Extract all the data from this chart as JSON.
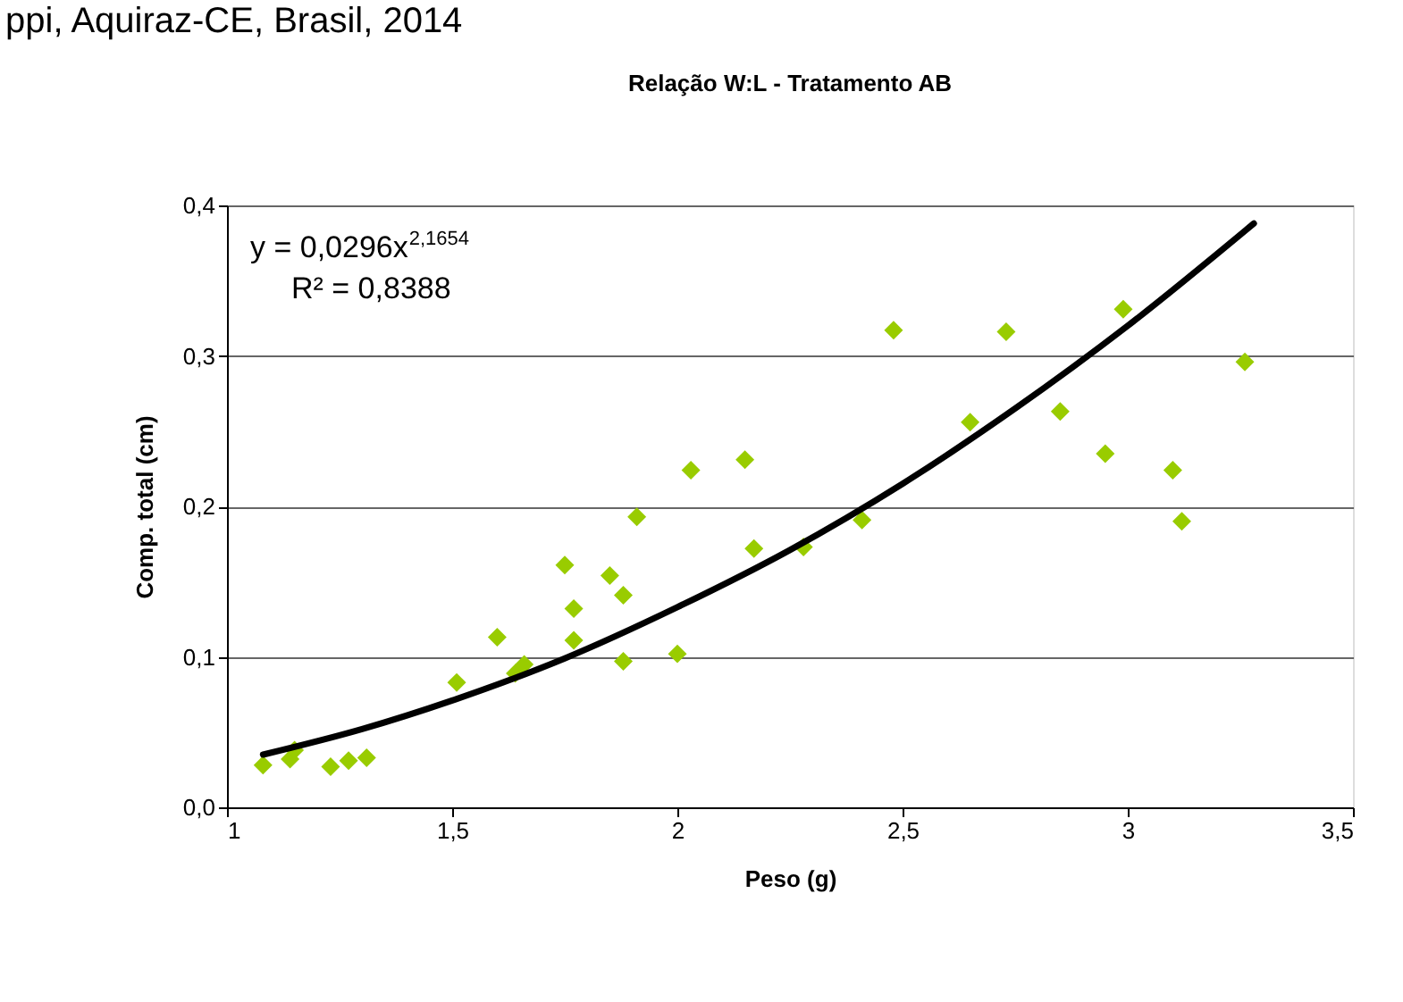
{
  "chart_data": {
    "type": "scatter",
    "title": "Relação W:L - Tratamento AB",
    "xlabel": "Peso (g)",
    "ylabel": "Comp. total (cm)",
    "annotations": [
      "ppi, Aquiraz-CE, Brasil, 2014",
      "y = 0,0296x$^{2,1654}$",
      "R² = 0,8388"
    ],
    "xlim": [
      1,
      3.5
    ],
    "ylim": [
      0,
      0.4
    ],
    "xticks": [
      1,
      {
        "value": 1.5,
        "label": "1,5"
      },
      2,
      {
        "value": 2.5,
        "label": "2,5"
      },
      3,
      {
        "value": 3.5,
        "label": "3,5"
      }
    ],
    "yticks": [
      {
        "value": 0,
        "label": "0,0"
      },
      {
        "value": 0.1,
        "label": "0,1"
      },
      {
        "value": 0.2,
        "label": "0,2"
      },
      {
        "value": 0.3,
        "label": "0,3"
      },
      {
        "value": 0.4,
        "label": "0,4"
      }
    ],
    "grid": "y",
    "series": [
      {
        "marker": "diamond",
        "color": "#99cc00",
        "x": [
          1.08,
          1.14,
          1.15,
          1.23,
          1.27,
          1.31,
          1.51,
          1.6,
          1.64,
          1.66,
          1.75,
          1.77,
          1.77,
          1.85,
          1.88,
          1.88,
          1.91,
          2.0,
          2.03,
          2.15,
          2.17,
          2.28,
          2.41,
          2.48,
          2.65,
          2.73,
          2.85,
          2.95,
          2.99,
          3.1,
          3.12,
          3.26
        ],
        "values": [
          0.028,
          0.032,
          0.038,
          0.027,
          0.031,
          0.033,
          0.083,
          0.113,
          0.089,
          0.095,
          0.161,
          0.132,
          0.111,
          0.154,
          0.141,
          0.097,
          0.193,
          0.102,
          0.224,
          0.231,
          0.172,
          0.173,
          0.191,
          0.317,
          0.256,
          0.316,
          0.263,
          0.235,
          0.331,
          0.224,
          0.19,
          0.296
        ]
      },
      {
        "type": "line",
        "color": "#000000",
        "line_style": "solid",
        "x": [
          1.08,
          1.3,
          1.5,
          1.75,
          2,
          2.25,
          2.5,
          2.75,
          3,
          3.28
        ],
        "values": [
          0.035,
          0.052,
          0.071,
          0.099,
          0.133,
          0.171,
          0.215,
          0.265,
          0.32,
          0.388
        ]
      }
    ]
  }
}
